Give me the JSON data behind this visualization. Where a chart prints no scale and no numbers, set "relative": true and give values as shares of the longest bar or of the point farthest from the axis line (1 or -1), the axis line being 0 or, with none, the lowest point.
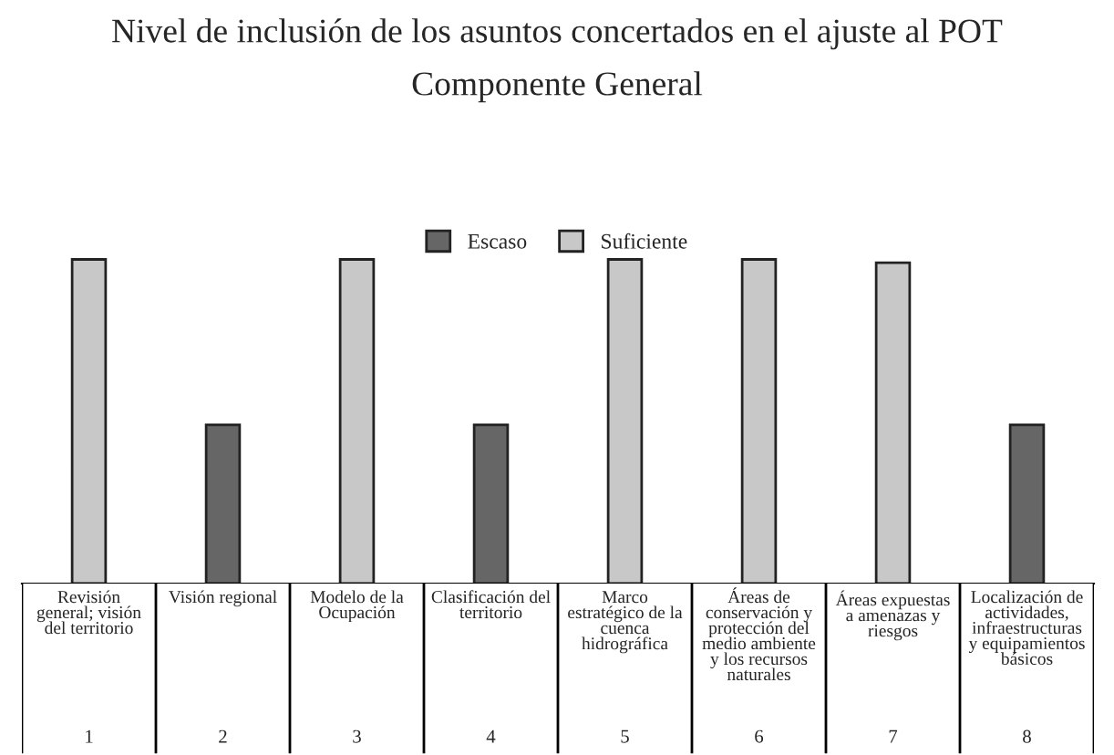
{
  "chart_data": {
    "type": "bar",
    "title": "Nivel de inclusión de los asuntos concertados en el ajuste al POT",
    "subtitle": "Componente General",
    "categories": [
      "Revisión general; visión del territorio",
      "Visión regional",
      "Modelo de la Ocupación",
      "Clasificación del territorio",
      "Marco estratégico de la cuenca hidrográfica",
      "Áreas de conservación y protección del medio ambiente y los recursos naturales",
      "Áreas expuestas a amenazas y riesgos",
      "Localización de actividades, infraestructuras y equipamientos básicos"
    ],
    "relative": true,
    "series": [
      {
        "name": "Escaso",
        "color": "#666666",
        "values": [
          null,
          0.49,
          null,
          0.49,
          null,
          null,
          null,
          0.49
        ]
      },
      {
        "name": "Suficiente",
        "color": "#c8c8c8",
        "values": [
          1,
          null,
          1,
          null,
          1,
          1,
          0.99,
          null
        ]
      }
    ],
    "annotations": [
      "1",
      "2",
      "3",
      "4",
      "5",
      "6",
      "7",
      "8"
    ],
    "legend": "top"
  }
}
